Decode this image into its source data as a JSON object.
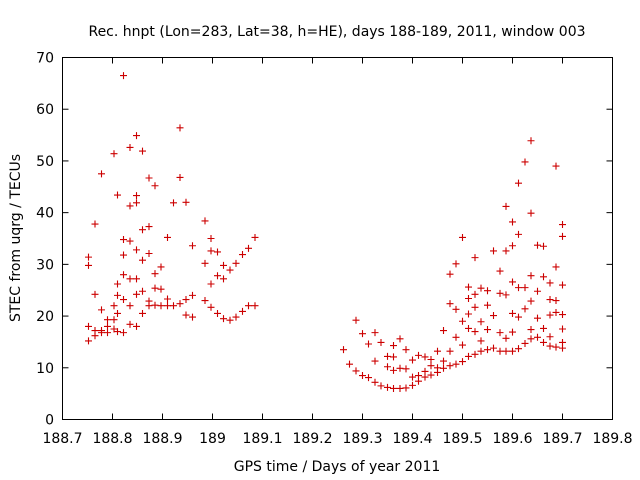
{
  "chart_data": {
    "type": "scatter",
    "title": "Rec. hnpt (Lon=283, Lat=38, h=HE), days 188-189, 2011, window 003",
    "xlabel": "GPS time / Days of year 2011",
    "ylabel": "STEC from uqrg / TECUs",
    "xlim": [
      188.7,
      189.8
    ],
    "ylim": [
      0,
      70
    ],
    "xticks": [
      "188.7",
      "188.8",
      "188.9",
      "189",
      "189.1",
      "189.2",
      "189.3",
      "189.4",
      "189.5",
      "189.6",
      "189.7",
      "189.8"
    ],
    "xtick_values": [
      188.7,
      188.8,
      188.9,
      189.0,
      189.1,
      189.2,
      189.3,
      189.4,
      189.5,
      189.6,
      189.7,
      189.8
    ],
    "yticks": [
      "0",
      "10",
      "20",
      "30",
      "40",
      "50",
      "60",
      "70"
    ],
    "ytick_values": [
      0,
      10,
      20,
      30,
      40,
      50,
      60,
      70
    ],
    "marker": "plus",
    "color": "#cc0000",
    "series": [
      {
        "name": "STEC",
        "points": [
          [
            188.752,
            15.2
          ],
          [
            188.752,
            18.0
          ],
          [
            188.752,
            29.8
          ],
          [
            188.752,
            31.4
          ],
          [
            188.765,
            37.8
          ],
          [
            188.765,
            24.2
          ],
          [
            188.765,
            16.2
          ],
          [
            188.765,
            17.2
          ],
          [
            188.778,
            47.5
          ],
          [
            188.778,
            21.2
          ],
          [
            188.778,
            17.2
          ],
          [
            188.778,
            16.8
          ],
          [
            188.79,
            19.3
          ],
          [
            188.79,
            18.0
          ],
          [
            188.79,
            16.8
          ],
          [
            188.803,
            51.4
          ],
          [
            188.803,
            22.0
          ],
          [
            188.803,
            19.3
          ],
          [
            188.803,
            17.5
          ],
          [
            188.81,
            43.4
          ],
          [
            188.81,
            26.2
          ],
          [
            188.81,
            24.0
          ],
          [
            188.81,
            20.5
          ],
          [
            188.81,
            17.0
          ],
          [
            188.822,
            66.5
          ],
          [
            188.822,
            34.8
          ],
          [
            188.822,
            31.8
          ],
          [
            188.822,
            28.0
          ],
          [
            188.822,
            23.2
          ],
          [
            188.822,
            16.8
          ],
          [
            188.835,
            52.6
          ],
          [
            188.835,
            41.3
          ],
          [
            188.835,
            34.5
          ],
          [
            188.835,
            27.2
          ],
          [
            188.835,
            22.0
          ],
          [
            188.835,
            18.4
          ],
          [
            188.848,
            54.9
          ],
          [
            188.848,
            43.3
          ],
          [
            188.848,
            41.9
          ],
          [
            188.848,
            32.8
          ],
          [
            188.848,
            27.2
          ],
          [
            188.848,
            24.2
          ],
          [
            188.848,
            18.0
          ],
          [
            188.86,
            51.9
          ],
          [
            188.86,
            36.7
          ],
          [
            188.86,
            30.8
          ],
          [
            188.86,
            24.8
          ],
          [
            188.86,
            20.5
          ],
          [
            188.873,
            46.7
          ],
          [
            188.873,
            37.3
          ],
          [
            188.873,
            32.1
          ],
          [
            188.873,
            22.9
          ],
          [
            188.873,
            22.0
          ],
          [
            188.885,
            45.2
          ],
          [
            188.885,
            28.2
          ],
          [
            188.885,
            25.4
          ],
          [
            188.885,
            22.1
          ],
          [
            188.897,
            29.5
          ],
          [
            188.897,
            25.2
          ],
          [
            188.897,
            22.0
          ],
          [
            188.91,
            35.2
          ],
          [
            188.91,
            23.3
          ],
          [
            188.91,
            22.0
          ],
          [
            188.922,
            41.9
          ],
          [
            188.922,
            22.0
          ],
          [
            188.935,
            56.4
          ],
          [
            188.935,
            46.8
          ],
          [
            188.935,
            22.4
          ],
          [
            188.947,
            42.0
          ],
          [
            188.947,
            23.2
          ],
          [
            188.947,
            20.2
          ],
          [
            188.96,
            33.6
          ],
          [
            188.96,
            24.0
          ],
          [
            188.96,
            19.8
          ],
          [
            188.985,
            38.4
          ],
          [
            188.985,
            30.2
          ],
          [
            188.985,
            23.0
          ],
          [
            188.997,
            35.0
          ],
          [
            188.997,
            32.6
          ],
          [
            188.997,
            26.2
          ],
          [
            188.997,
            21.7
          ],
          [
            189.01,
            32.4
          ],
          [
            189.01,
            27.8
          ],
          [
            189.01,
            20.5
          ],
          [
            189.022,
            29.8
          ],
          [
            189.022,
            27.2
          ],
          [
            189.022,
            19.5
          ],
          [
            189.035,
            28.9
          ],
          [
            189.035,
            19.2
          ],
          [
            189.047,
            30.2
          ],
          [
            189.047,
            19.8
          ],
          [
            189.06,
            31.9
          ],
          [
            189.06,
            20.9
          ],
          [
            189.072,
            33.1
          ],
          [
            189.072,
            22.0
          ],
          [
            189.085,
            35.2
          ],
          [
            189.085,
            22.0
          ],
          [
            189.262,
            13.5
          ],
          [
            189.274,
            10.7
          ],
          [
            189.287,
            19.2
          ],
          [
            189.287,
            9.4
          ],
          [
            189.3,
            16.6
          ],
          [
            189.3,
            8.5
          ],
          [
            189.312,
            14.6
          ],
          [
            189.312,
            8.1
          ],
          [
            189.325,
            16.8
          ],
          [
            189.325,
            11.3
          ],
          [
            189.325,
            7.2
          ],
          [
            189.337,
            14.9
          ],
          [
            189.337,
            6.5
          ],
          [
            189.35,
            12.2
          ],
          [
            189.35,
            10.2
          ],
          [
            189.35,
            6.2
          ],
          [
            189.362,
            14.3
          ],
          [
            189.362,
            12.1
          ],
          [
            189.362,
            9.5
          ],
          [
            189.362,
            6.0
          ],
          [
            189.375,
            15.6
          ],
          [
            189.375,
            9.9
          ],
          [
            189.375,
            6.0
          ],
          [
            189.387,
            13.5
          ],
          [
            189.387,
            9.8
          ],
          [
            189.387,
            6.1
          ],
          [
            189.4,
            11.5
          ],
          [
            189.4,
            8.2
          ],
          [
            189.4,
            6.6
          ],
          [
            189.412,
            12.4
          ],
          [
            189.412,
            8.5
          ],
          [
            189.412,
            7.4
          ],
          [
            189.425,
            12.1
          ],
          [
            189.425,
            9.3
          ],
          [
            189.425,
            8.2
          ],
          [
            189.437,
            11.6
          ],
          [
            189.437,
            10.4
          ],
          [
            189.437,
            8.6
          ],
          [
            189.45,
            13.2
          ],
          [
            189.45,
            10.0
          ],
          [
            189.45,
            9.1
          ],
          [
            189.462,
            17.2
          ],
          [
            189.462,
            11.3
          ],
          [
            189.462,
            9.9
          ],
          [
            189.475,
            28.1
          ],
          [
            189.475,
            22.4
          ],
          [
            189.475,
            13.2
          ],
          [
            189.475,
            10.4
          ],
          [
            189.487,
            30.1
          ],
          [
            189.487,
            21.3
          ],
          [
            189.487,
            15.9
          ],
          [
            189.487,
            10.7
          ],
          [
            189.5,
            35.2
          ],
          [
            189.5,
            19.0
          ],
          [
            189.5,
            14.4
          ],
          [
            189.5,
            11.2
          ],
          [
            189.512,
            25.6
          ],
          [
            189.512,
            23.4
          ],
          [
            189.512,
            20.4
          ],
          [
            189.512,
            17.6
          ],
          [
            189.512,
            12.2
          ],
          [
            189.525,
            31.3
          ],
          [
            189.525,
            24.2
          ],
          [
            189.525,
            21.7
          ],
          [
            189.525,
            17.0
          ],
          [
            189.525,
            12.6
          ],
          [
            189.537,
            25.4
          ],
          [
            189.537,
            18.9
          ],
          [
            189.537,
            15.2
          ],
          [
            189.537,
            13.2
          ],
          [
            189.55,
            24.9
          ],
          [
            189.55,
            22.1
          ],
          [
            189.55,
            17.4
          ],
          [
            189.55,
            13.5
          ],
          [
            189.562,
            32.6
          ],
          [
            189.562,
            20.1
          ],
          [
            189.562,
            13.8
          ],
          [
            189.575,
            28.7
          ],
          [
            189.575,
            24.4
          ],
          [
            189.575,
            16.8
          ],
          [
            189.575,
            13.2
          ],
          [
            189.587,
            41.2
          ],
          [
            189.587,
            32.6
          ],
          [
            189.587,
            24.1
          ],
          [
            189.587,
            15.7
          ],
          [
            189.587,
            13.2
          ],
          [
            189.6,
            38.2
          ],
          [
            189.6,
            33.6
          ],
          [
            189.6,
            26.6
          ],
          [
            189.6,
            20.5
          ],
          [
            189.6,
            16.9
          ],
          [
            189.6,
            13.2
          ],
          [
            189.612,
            45.7
          ],
          [
            189.612,
            35.8
          ],
          [
            189.612,
            25.5
          ],
          [
            189.612,
            19.8
          ],
          [
            189.612,
            13.7
          ],
          [
            189.625,
            49.8
          ],
          [
            189.625,
            25.5
          ],
          [
            189.625,
            21.4
          ],
          [
            189.625,
            14.7
          ],
          [
            189.637,
            53.9
          ],
          [
            189.637,
            39.9
          ],
          [
            189.637,
            27.8
          ],
          [
            189.637,
            22.9
          ],
          [
            189.637,
            17.4
          ],
          [
            189.637,
            15.6
          ],
          [
            189.65,
            33.7
          ],
          [
            189.65,
            24.8
          ],
          [
            189.65,
            19.6
          ],
          [
            189.65,
            15.9
          ],
          [
            189.662,
            33.5
          ],
          [
            189.662,
            27.6
          ],
          [
            189.662,
            17.6
          ],
          [
            189.662,
            14.9
          ],
          [
            189.675,
            26.4
          ],
          [
            189.675,
            23.2
          ],
          [
            189.675,
            20.2
          ],
          [
            189.675,
            16.0
          ],
          [
            189.675,
            14.2
          ],
          [
            189.687,
            49.0
          ],
          [
            189.687,
            29.5
          ],
          [
            189.687,
            23.0
          ],
          [
            189.687,
            20.7
          ],
          [
            189.687,
            14.0
          ],
          [
            189.7,
            37.7
          ],
          [
            189.7,
            35.4
          ],
          [
            189.7,
            26.0
          ],
          [
            189.7,
            20.3
          ],
          [
            189.7,
            17.5
          ],
          [
            189.7,
            14.9
          ],
          [
            189.7,
            13.8
          ]
        ]
      }
    ]
  }
}
